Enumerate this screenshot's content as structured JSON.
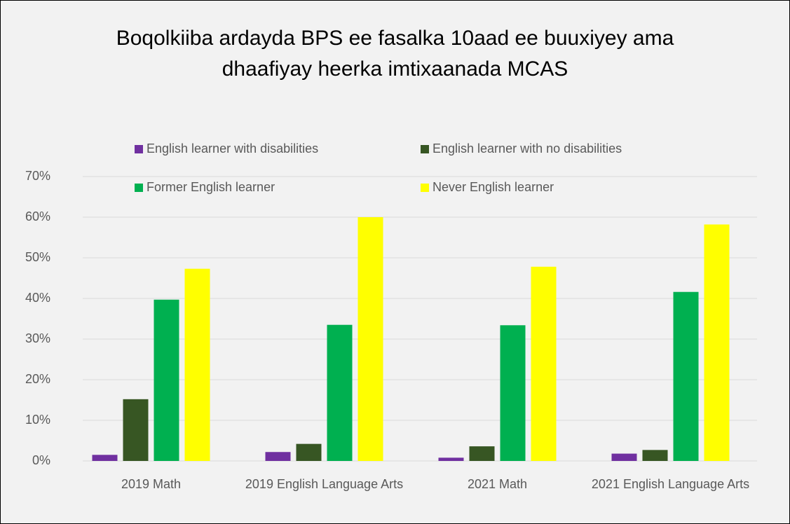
{
  "chart_data": {
    "type": "bar",
    "title": "Boqolkiiba ardayda BPS ee fasalka 10aad ee buuxiyey ama dhaafiyay heerka imtixaanada MCAS",
    "categories": [
      "2019 Math",
      "2019 English Language Arts",
      "2021 Math",
      "2021 English Language Arts"
    ],
    "series": [
      {
        "name": "English learner with disabilities",
        "color": "#7030a0",
        "values": [
          1.5,
          2.2,
          0.8,
          1.8
        ]
      },
      {
        "name": "English learner with no disabilities",
        "color": "#375623",
        "values": [
          15.2,
          4.2,
          3.6,
          2.7
        ]
      },
      {
        "name": "Former English learner",
        "color": "#00b050",
        "values": [
          39.7,
          33.5,
          33.4,
          41.6
        ]
      },
      {
        "name": "Never English learner",
        "color": "#ffff00",
        "values": [
          47.3,
          60,
          47.8,
          58.2
        ]
      }
    ],
    "ylim": [
      0,
      70
    ],
    "yticks": [
      {
        "value": 0,
        "label": "0%"
      },
      {
        "value": 10,
        "label": "10%"
      },
      {
        "value": 20,
        "label": "20%"
      },
      {
        "value": 30,
        "label": "30%"
      },
      {
        "value": 40,
        "label": "40%"
      },
      {
        "value": 50,
        "label": "50%"
      },
      {
        "value": 60,
        "label": "60%"
      },
      {
        "value": 70,
        "label": "70%"
      }
    ],
    "grid": true,
    "legend": "top"
  }
}
